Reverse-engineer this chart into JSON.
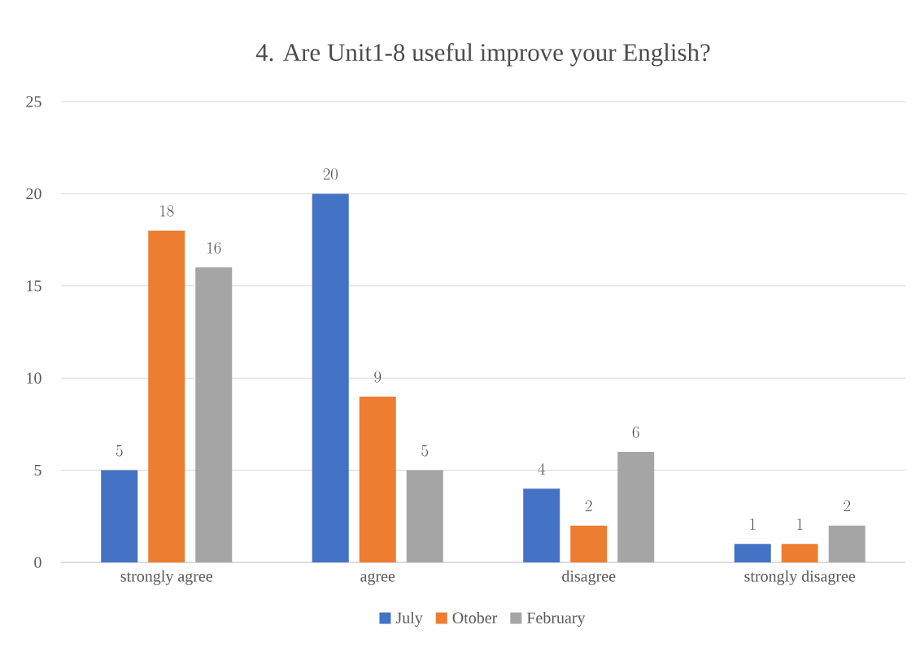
{
  "chart_data": {
    "type": "bar",
    "title": "4. Are Unit1-8 useful improve your English?",
    "categories": [
      "strongly agree",
      "agree",
      "disagree",
      "strongly disagree"
    ],
    "series": [
      {
        "name": "July",
        "color": "#4472c4",
        "values": [
          5,
          20,
          4,
          1
        ]
      },
      {
        "name": "Otober",
        "color": "#ed7d31",
        "values": [
          18,
          9,
          2,
          1
        ]
      },
      {
        "name": "February",
        "color": "#a5a5a5",
        "values": [
          16,
          5,
          6,
          2
        ]
      }
    ],
    "ylim": [
      0,
      25
    ],
    "yticks": [
      0,
      5,
      10,
      15,
      20,
      25
    ],
    "grid": "y",
    "legend": "bottom",
    "data_labels": true
  }
}
